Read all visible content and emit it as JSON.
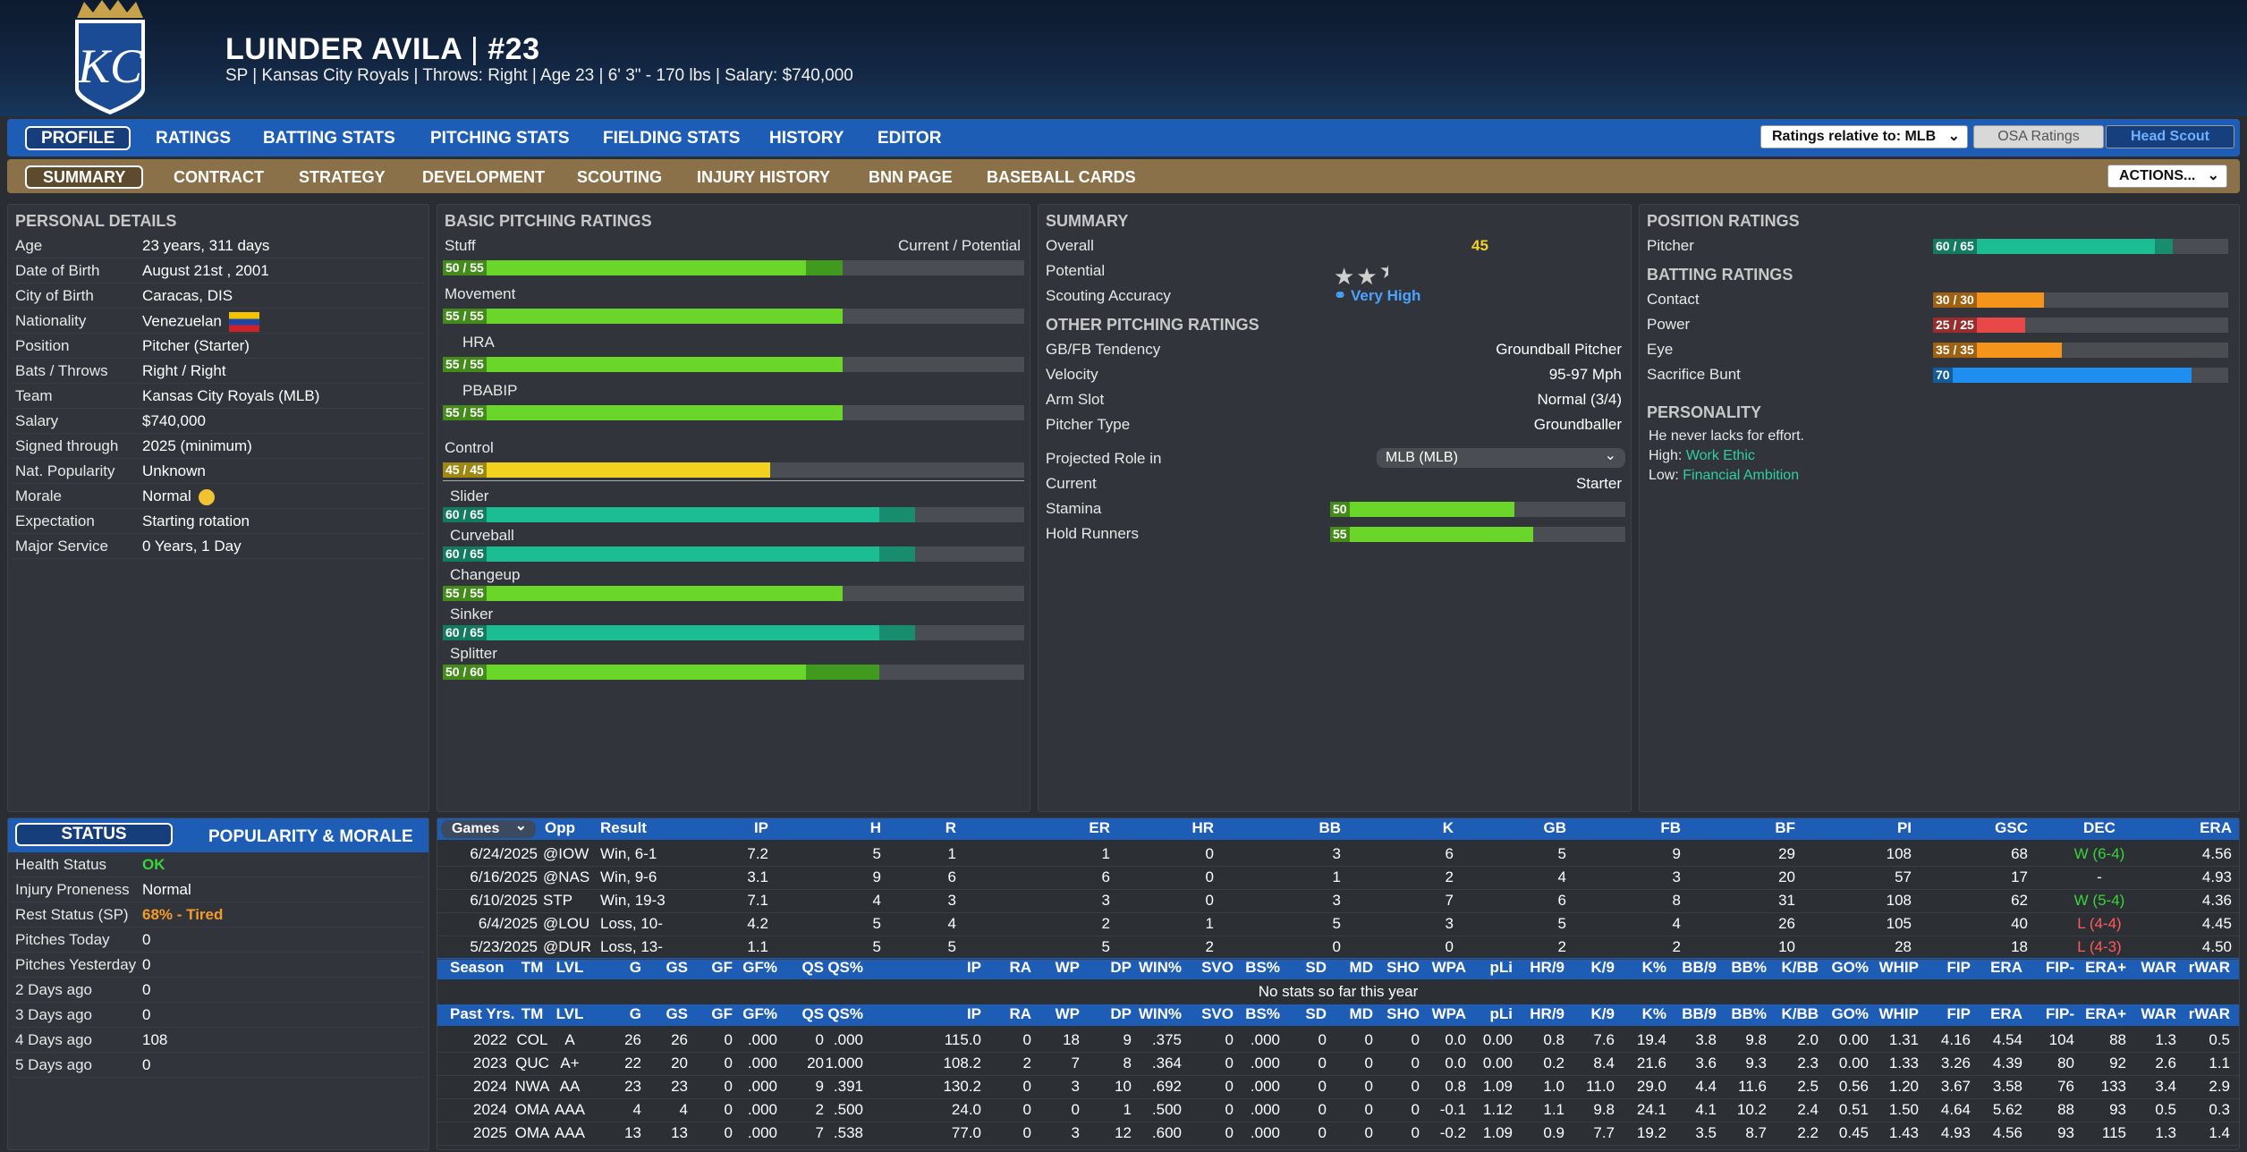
{
  "player": {
    "name": "LUINDER AVILA",
    "number_sep": "|",
    "number": "#23",
    "info": "SP | Kansas City Royals  |  Throws: Right  |  Age 23  |  6' 3\" - 170 lbs  |  Salary: $740,000"
  },
  "nav1": {
    "tabs": [
      "PROFILE",
      "RATINGS",
      "BATTING STATS",
      "PITCHING STATS",
      "FIELDING STATS",
      "HISTORY",
      "EDITOR"
    ],
    "ratings_relative": "Ratings relative to: MLB",
    "osa": "OSA Ratings",
    "scout": "Head Scout"
  },
  "nav2": {
    "tabs": [
      "SUMMARY",
      "CONTRACT",
      "STRATEGY",
      "DEVELOPMENT",
      "SCOUTING",
      "INJURY HISTORY",
      "BNN PAGE",
      "BASEBALL CARDS"
    ],
    "actions": "ACTIONS..."
  },
  "personal": {
    "title": "PERSONAL DETAILS",
    "rows": [
      {
        "label": "Age",
        "value": "23 years, 311 days"
      },
      {
        "label": "Date of Birth",
        "value": "August 21st , 2001"
      },
      {
        "label": "City of Birth",
        "value": "Caracas, DIS"
      },
      {
        "label": "Nationality",
        "value": "Venezuelan"
      },
      {
        "label": "Position",
        "value": "Pitcher (Starter)"
      },
      {
        "label": "Bats / Throws",
        "value": "Right / Right"
      },
      {
        "label": "Team",
        "value": "Kansas City Royals (MLB)"
      },
      {
        "label": "Salary",
        "value": "$740,000"
      },
      {
        "label": "Signed through",
        "value": "2025 (minimum)"
      },
      {
        "label": "Nat. Popularity",
        "value": "Unknown"
      },
      {
        "label": "Morale",
        "value": "Normal"
      },
      {
        "label": "Expectation",
        "value": "Starting rotation"
      },
      {
        "label": "Major Service",
        "value": "0 Years, 1 Day"
      }
    ]
  },
  "basic": {
    "title": "BASIC PITCHING RATINGS",
    "cur_pot": "Current / Potential",
    "ratings": [
      {
        "label": "Stuff",
        "text": "50 / 55",
        "cur": 50,
        "pot": 55,
        "color": "green"
      },
      {
        "label": "Movement",
        "text": "55 / 55",
        "cur": 55,
        "pot": 55,
        "color": "green"
      },
      {
        "label": "HRA",
        "text": "55 / 55",
        "cur": 55,
        "pot": 55,
        "color": "green"
      },
      {
        "label": "PBABIP",
        "text": "55 / 55",
        "cur": 55,
        "pot": 55,
        "color": "green"
      },
      {
        "label": "Control",
        "text": "45 / 45",
        "cur": 45,
        "pot": 45,
        "color": "yellow"
      }
    ],
    "pitches": [
      {
        "label": "Slider",
        "text": "60 / 65",
        "cur": 60,
        "pot": 65,
        "color": "teal"
      },
      {
        "label": "Curveball",
        "text": "60 / 65",
        "cur": 60,
        "pot": 65,
        "color": "teal"
      },
      {
        "label": "Changeup",
        "text": "55 / 55",
        "cur": 55,
        "pot": 55,
        "color": "green"
      },
      {
        "label": "Sinker",
        "text": "60 / 65",
        "cur": 60,
        "pot": 65,
        "color": "teal"
      },
      {
        "label": "Splitter",
        "text": "50 / 60",
        "cur": 50,
        "pot": 60,
        "color": "green"
      }
    ]
  },
  "summary": {
    "title": "SUMMARY",
    "overall_label": "Overall",
    "overall": "45",
    "potential_label": "Potential",
    "potential_stars": 2.5,
    "scout_label": "Scouting Accuracy",
    "scout": "Very High",
    "other_title": "OTHER PITCHING RATINGS",
    "other": [
      {
        "label": "GB/FB Tendency",
        "value": "Groundball Pitcher"
      },
      {
        "label": "Velocity",
        "value": "95-97 Mph"
      },
      {
        "label": "Arm Slot",
        "value": "Normal (3/4)"
      },
      {
        "label": "Pitcher Type",
        "value": "Groundballer"
      }
    ],
    "proj_label": "Projected Role in",
    "proj_select": "MLB (MLB)",
    "current_label": "Current",
    "current_value": "Starter",
    "stamina_label": "Stamina",
    "stamina": 50,
    "stamina_text": "50",
    "hold_label": "Hold Runners",
    "hold": 55,
    "hold_text": "55"
  },
  "position": {
    "title": "POSITION RATINGS",
    "pitcher_label": "Pitcher",
    "pitcher_text": "60 / 65",
    "pitcher_cur": 60,
    "pitcher_pot": 65,
    "batting_title": "BATTING RATINGS",
    "batting": [
      {
        "label": "Contact",
        "text": "30 / 30",
        "cur": 30,
        "pot": 30,
        "color": "orange"
      },
      {
        "label": "Power",
        "text": "25 / 25",
        "cur": 25,
        "pot": 25,
        "color": "red"
      },
      {
        "label": "Eye",
        "text": "35 / 35",
        "cur": 35,
        "pot": 35,
        "color": "orange"
      },
      {
        "label": "Sacrifice Bunt",
        "text": "70",
        "cur": 70,
        "pot": 70,
        "color": "blue"
      }
    ],
    "personality_title": "PERSONALITY",
    "p1": "He never lacks for effort.",
    "p2_label": "High:",
    "p2": "Work Ethic",
    "p3_label": "Low:",
    "p3": "Financial Ambition"
  },
  "status": {
    "tab1": "STATUS",
    "tab2": "POPULARITY & MORALE",
    "rows": [
      {
        "label": "Health Status",
        "value": "OK",
        "cls": "green"
      },
      {
        "label": "Injury Proneness",
        "value": "Normal",
        "cls": ""
      },
      {
        "label": "Rest Status (SP)",
        "value": "68% - Tired",
        "cls": "orange"
      },
      {
        "label": "Pitches Today",
        "value": "0",
        "cls": ""
      },
      {
        "label": "Pitches Yesterday",
        "value": "0",
        "cls": ""
      },
      {
        "label": "2 Days ago",
        "value": "0",
        "cls": ""
      },
      {
        "label": "3 Days ago",
        "value": "0",
        "cls": ""
      },
      {
        "label": "4 Days ago",
        "value": "108",
        "cls": ""
      },
      {
        "label": "5 Days ago",
        "value": "0",
        "cls": ""
      }
    ]
  },
  "games": {
    "select": "Games",
    "headers": [
      "Opp",
      "Result",
      "IP",
      "H",
      "R",
      "ER",
      "HR",
      "BB",
      "K",
      "GB",
      "FB",
      "BF",
      "PI",
      "GSC",
      "DEC",
      "ERA"
    ],
    "rows": [
      [
        "6/24/2025",
        "@IOW",
        "Win, 6-1",
        "7.2",
        "5",
        "1",
        "1",
        "0",
        "3",
        "6",
        "5",
        "9",
        "29",
        "108",
        "68",
        "W (6-4)",
        "4.56"
      ],
      [
        "6/16/2025",
        "@NAS",
        "Win, 9-6",
        "3.1",
        "9",
        "6",
        "6",
        "0",
        "1",
        "2",
        "4",
        "3",
        "20",
        "57",
        "17",
        "-",
        "4.93"
      ],
      [
        "6/10/2025",
        "STP",
        "Win, 19-3",
        "7.1",
        "4",
        "3",
        "3",
        "0",
        "3",
        "7",
        "6",
        "8",
        "31",
        "108",
        "62",
        "W (5-4)",
        "4.36"
      ],
      [
        "6/4/2025",
        "@LOU",
        "Loss, 10-",
        "4.2",
        "5",
        "4",
        "2",
        "1",
        "5",
        "3",
        "5",
        "4",
        "26",
        "105",
        "40",
        "L (4-4)",
        "4.45"
      ],
      [
        "5/23/2025",
        "@DUR",
        "Loss, 13-",
        "1.1",
        "5",
        "5",
        "5",
        "2",
        "0",
        "0",
        "2",
        "2",
        "10",
        "28",
        "18",
        "L (4-3)",
        "4.50"
      ]
    ]
  },
  "season": {
    "headers": [
      "Season",
      "TM",
      "LVL",
      "G",
      "GS",
      "GF",
      "GF%",
      "QS",
      "QS%",
      "IP",
      "RA",
      "WP",
      "DP",
      "WIN%",
      "SVO",
      "BS%",
      "SD",
      "MD",
      "SHO",
      "WPA",
      "pLi",
      "HR/9",
      "K/9",
      "K%",
      "BB/9",
      "BB%",
      "K/BB",
      "GO%",
      "WHIP",
      "FIP",
      "ERA",
      "FIP-",
      "ERA+",
      "WAR",
      "rWAR"
    ],
    "none": "No stats so far this year"
  },
  "past": {
    "headers": [
      "Past Yrs.",
      "TM",
      "LVL",
      "G",
      "GS",
      "GF",
      "GF%",
      "QS",
      "QS%",
      "IP",
      "RA",
      "WP",
      "DP",
      "WIN%",
      "SVO",
      "BS%",
      "SD",
      "MD",
      "SHO",
      "WPA",
      "pLi",
      "HR/9",
      "K/9",
      "K%",
      "BB/9",
      "BB%",
      "K/BB",
      "GO%",
      "WHIP",
      "FIP",
      "ERA",
      "FIP-",
      "ERA+",
      "WAR",
      "rWAR"
    ],
    "rows": [
      [
        "2022",
        "COL",
        "A",
        "26",
        "26",
        "0",
        ".000",
        "0",
        ".000",
        "115.0",
        "0",
        "18",
        "9",
        ".375",
        "0",
        ".000",
        "0",
        "0",
        "0",
        "0.0",
        "0.00",
        "0.8",
        "7.6",
        "19.4",
        "3.8",
        "9.8",
        "2.0",
        "0.00",
        "1.31",
        "4.16",
        "4.54",
        "104",
        "88",
        "1.3",
        "0.5"
      ],
      [
        "2023",
        "QUC",
        "A+",
        "22",
        "20",
        "0",
        ".000",
        "20",
        "1.000",
        "108.2",
        "2",
        "7",
        "8",
        ".364",
        "0",
        ".000",
        "0",
        "0",
        "0",
        "0.0",
        "0.00",
        "0.2",
        "8.4",
        "21.6",
        "3.6",
        "9.3",
        "2.3",
        "0.00",
        "1.33",
        "3.26",
        "4.39",
        "80",
        "92",
        "2.6",
        "1.1"
      ],
      [
        "2024",
        "NWA",
        "AA",
        "23",
        "23",
        "0",
        ".000",
        "9",
        ".391",
        "130.2",
        "0",
        "3",
        "10",
        ".692",
        "0",
        ".000",
        "0",
        "0",
        "0",
        "0.8",
        "1.09",
        "1.0",
        "11.0",
        "29.0",
        "4.4",
        "11.6",
        "2.5",
        "0.56",
        "1.20",
        "3.67",
        "3.58",
        "76",
        "133",
        "3.4",
        "2.9"
      ],
      [
        "2024",
        "OMA",
        "AAA",
        "4",
        "4",
        "0",
        ".000",
        "2",
        ".500",
        "24.0",
        "0",
        "0",
        "1",
        ".500",
        "0",
        ".000",
        "0",
        "0",
        "0",
        "-0.1",
        "1.12",
        "1.1",
        "9.8",
        "24.1",
        "4.1",
        "10.2",
        "2.4",
        "0.51",
        "1.50",
        "4.64",
        "5.62",
        "88",
        "93",
        "0.5",
        "0.3"
      ],
      [
        "2025",
        "OMA",
        "AAA",
        "13",
        "13",
        "0",
        ".000",
        "7",
        ".538",
        "77.0",
        "0",
        "3",
        "12",
        ".600",
        "0",
        ".000",
        "0",
        "0",
        "0",
        "-0.2",
        "1.09",
        "0.9",
        "7.7",
        "19.2",
        "3.5",
        "8.7",
        "2.2",
        "0.45",
        "1.43",
        "4.93",
        "4.56",
        "93",
        "115",
        "1.3",
        "1.4"
      ]
    ]
  },
  "colors": {
    "green": "#6bd62a",
    "green_pot": "#3f9a1e",
    "teal": "#1dbd94",
    "teal_pot": "#178c6e",
    "yellow": "#f2d21e",
    "orange": "#f4941b",
    "red": "#e84848",
    "blue": "#1e8ef0",
    "nav_blue": "#1e5db5",
    "nav_gold": "#8b7149"
  }
}
